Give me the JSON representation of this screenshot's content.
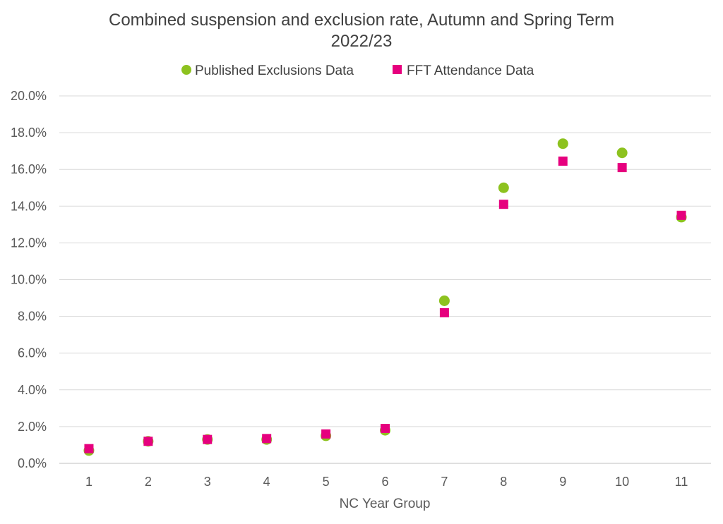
{
  "chart_data": {
    "type": "scatter",
    "title_lines": [
      "Combined suspension and exclusion rate, Autumn and Spring Term",
      "2022/23"
    ],
    "xlabel": "NC Year Group",
    "ylabel": "",
    "categories": [
      "1",
      "2",
      "3",
      "4",
      "5",
      "6",
      "7",
      "8",
      "9",
      "10",
      "11"
    ],
    "ylim": [
      0,
      0.2
    ],
    "y_ticks": [
      0,
      0.02,
      0.04,
      0.06,
      0.08,
      0.1,
      0.12,
      0.14,
      0.16,
      0.18,
      0.2
    ],
    "y_tick_labels": [
      "0.0%",
      "2.0%",
      "4.0%",
      "6.0%",
      "8.0%",
      "10.0%",
      "12.0%",
      "14.0%",
      "16.0%",
      "18.0%",
      "20.0%"
    ],
    "grid": true,
    "legend_position": "top",
    "series": [
      {
        "name": "Published Exclusions Data",
        "marker": "circle",
        "color": "#8dc21f",
        "values": [
          0.007,
          0.012,
          0.013,
          0.013,
          0.015,
          0.018,
          0.0885,
          0.15,
          0.174,
          0.169,
          0.134
        ]
      },
      {
        "name": "FFT Attendance Data",
        "marker": "square",
        "color": "#e6007e",
        "values": [
          0.008,
          0.012,
          0.013,
          0.0135,
          0.016,
          0.019,
          0.082,
          0.141,
          0.1645,
          0.161,
          0.135
        ]
      }
    ]
  }
}
